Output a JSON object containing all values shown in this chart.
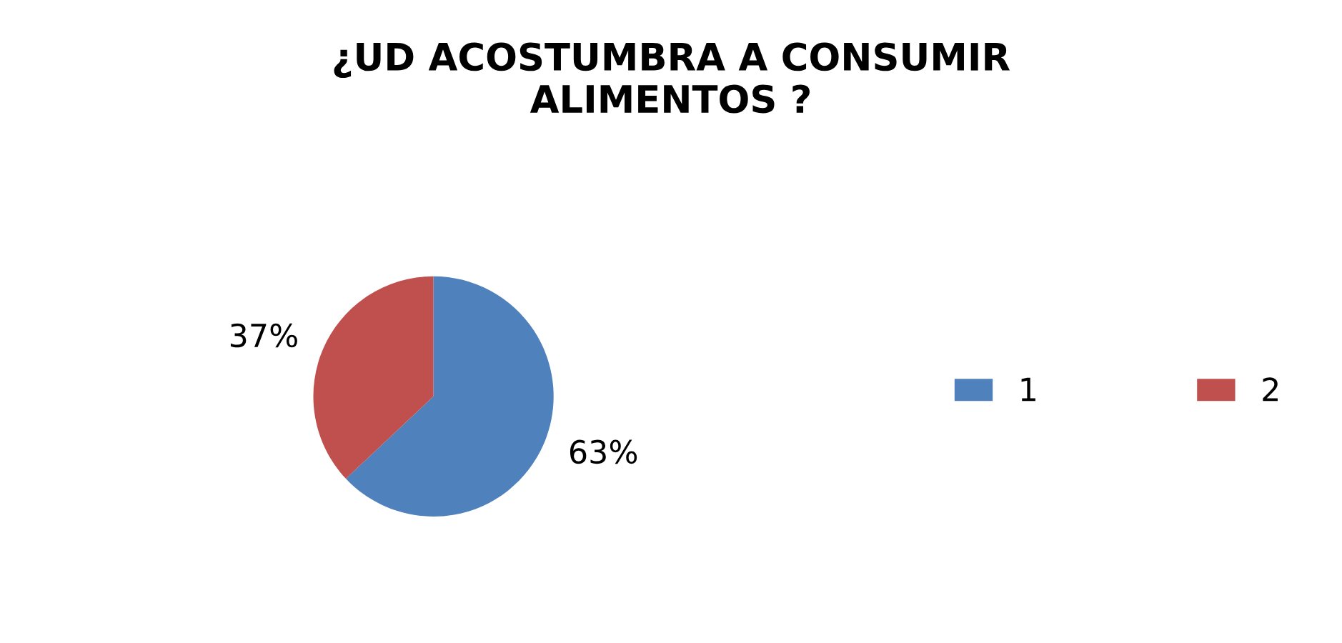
{
  "chart_data": {
    "type": "pie",
    "title": "¿UD ACOSTUMBRA A CONSUMIR\nALIMENTOS ?",
    "categories": [
      "1",
      "2"
    ],
    "values": [
      63,
      37
    ],
    "colors": [
      "#4f81bd",
      "#c0504d"
    ],
    "value_labels": [
      "63%",
      "37%"
    ],
    "legend": "right"
  }
}
